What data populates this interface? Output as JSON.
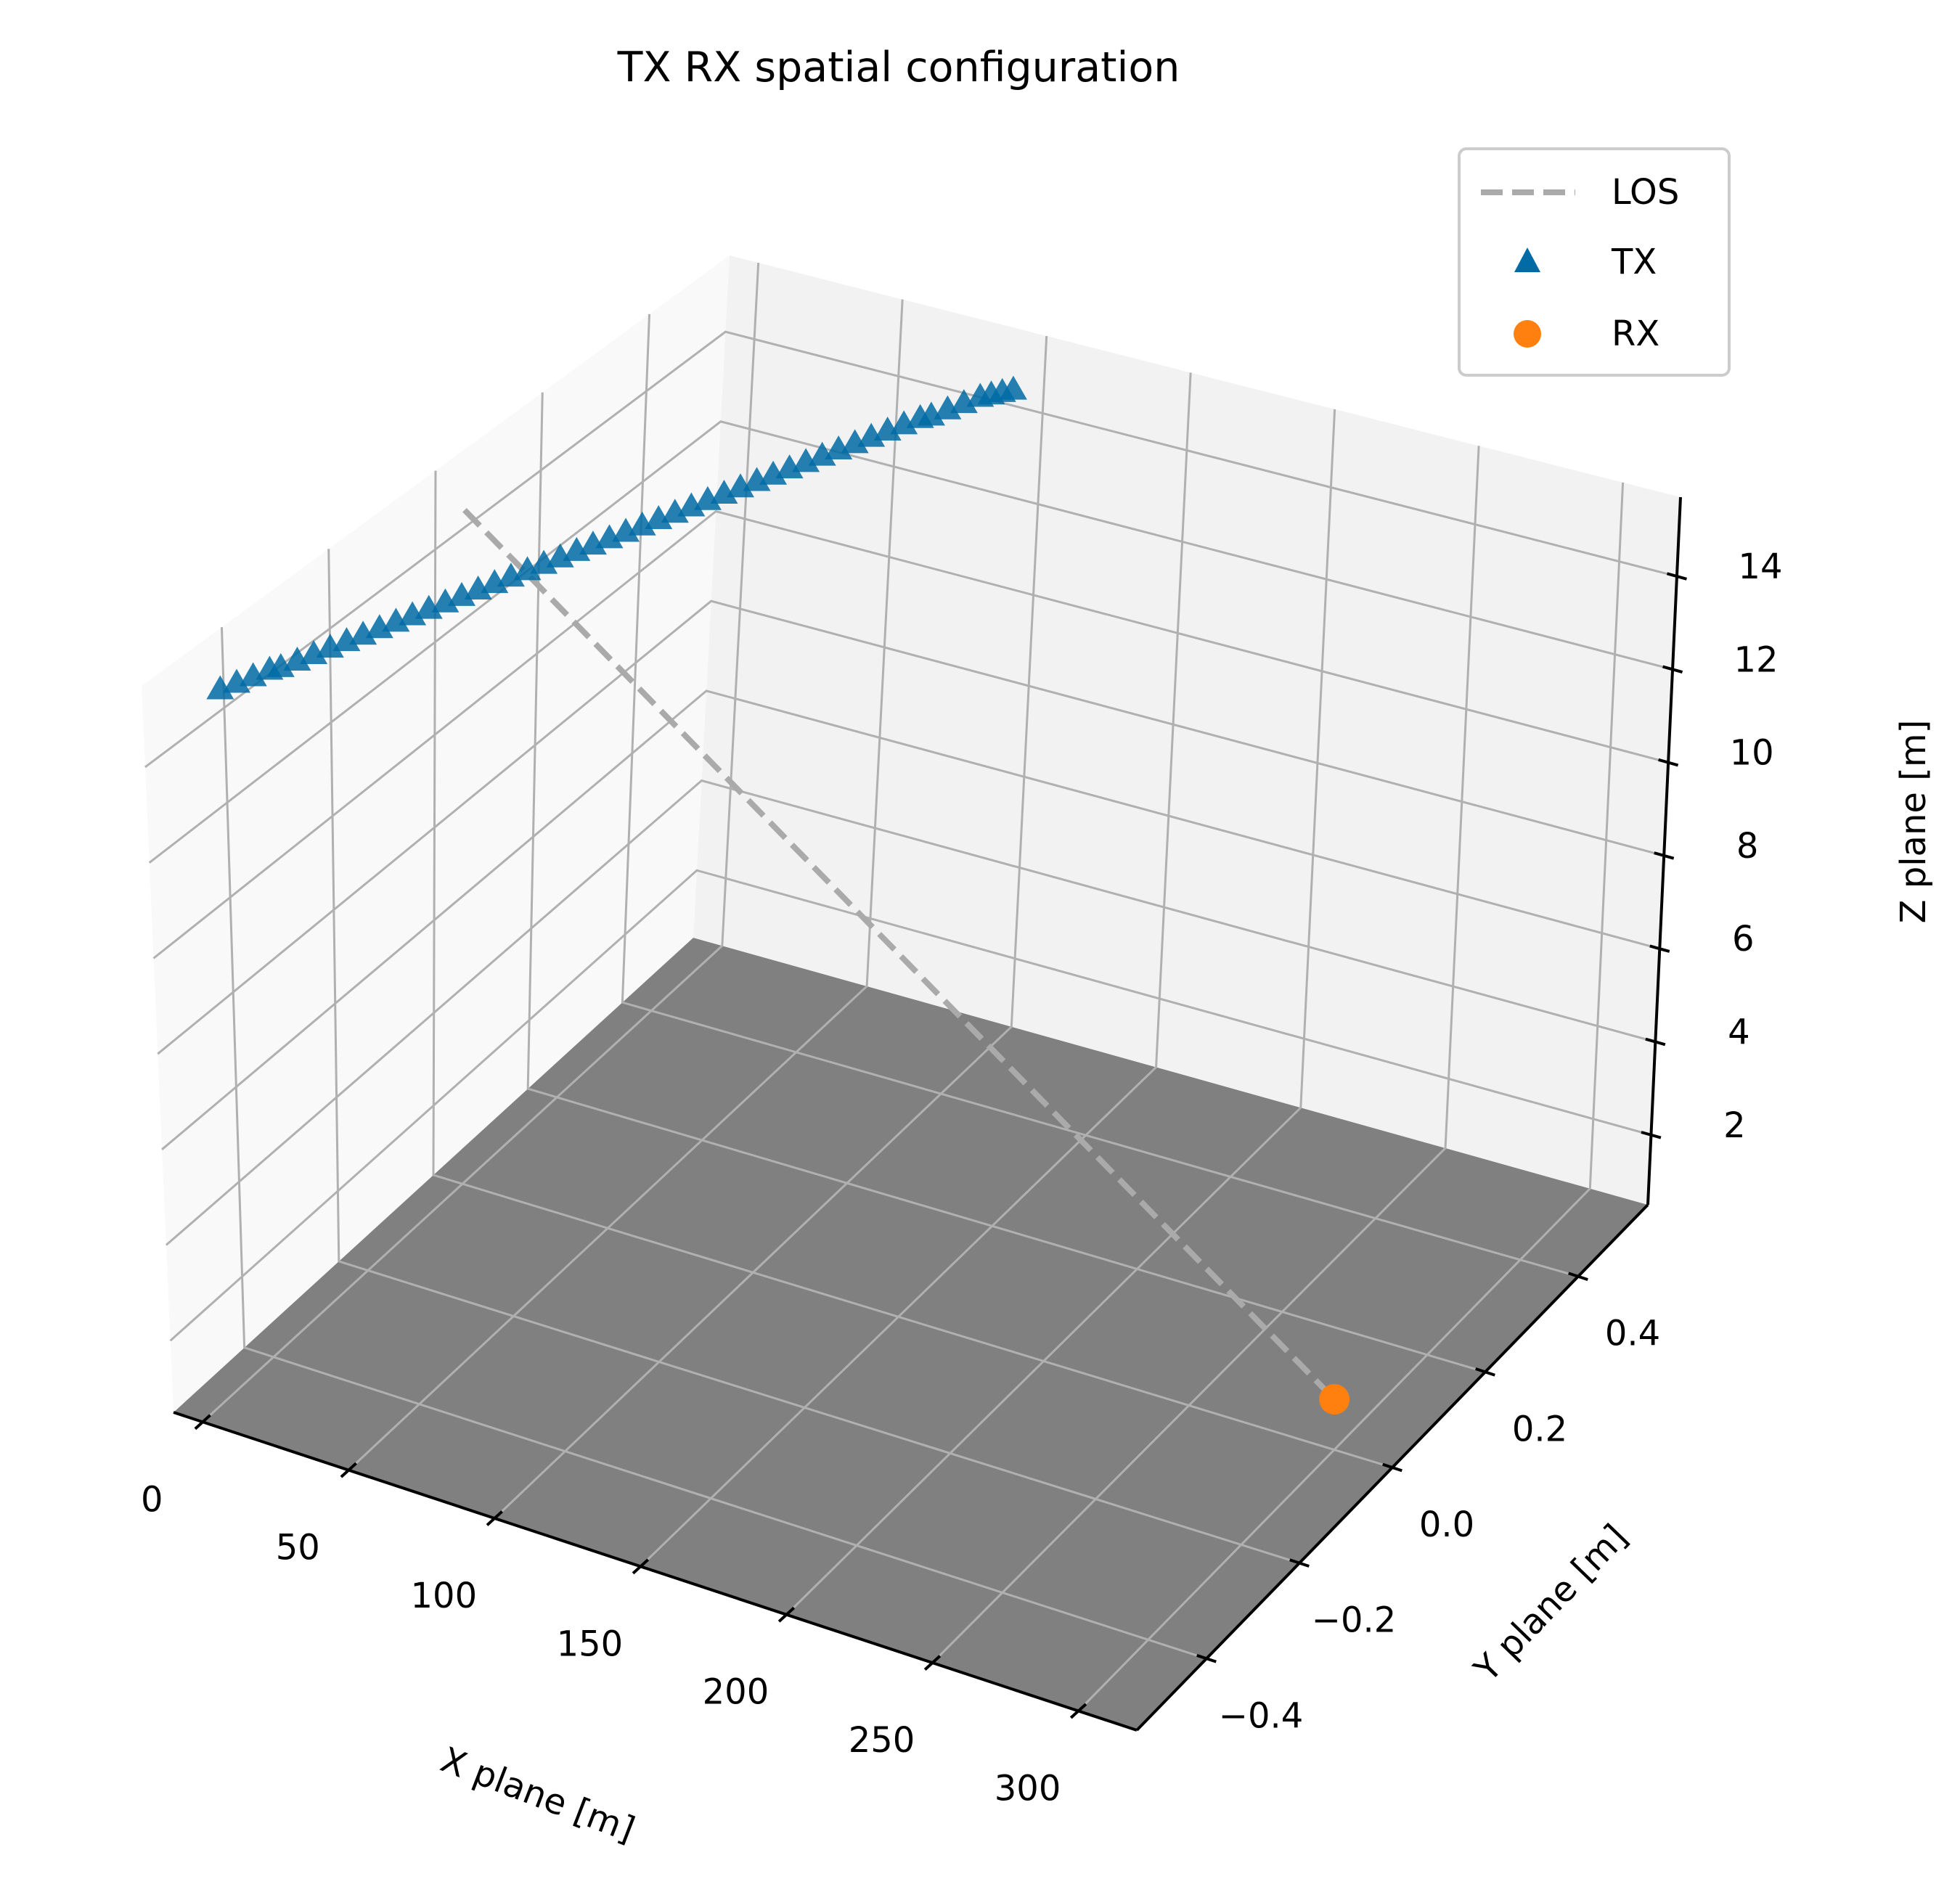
{
  "chart_data": {
    "type": "scatter",
    "title": "TX RX spatial configuration",
    "xlabel": "X plane [m]",
    "ylabel": "Y plane [m]",
    "zlabel": "Z plane [m]",
    "xlim": [
      -10,
      320
    ],
    "ylim": [
      -0.55,
      0.55
    ],
    "zlim": [
      0.5,
      15.7
    ],
    "x_ticks": [
      0,
      50,
      100,
      150,
      200,
      250,
      300
    ],
    "x_tick_labels": [
      "0",
      "50",
      "100",
      "150",
      "200",
      "250",
      "300"
    ],
    "y_ticks": [
      -0.4,
      -0.2,
      0.0,
      0.2,
      0.4
    ],
    "y_tick_labels": [
      "−0.4",
      "−0.2",
      "0.0",
      "0.2",
      "0.4"
    ],
    "z_ticks": [
      2,
      4,
      6,
      8,
      10,
      12,
      14
    ],
    "z_tick_labels": [
      "2",
      "4",
      "6",
      "8",
      "10",
      "12",
      "14"
    ],
    "grid": true,
    "floor_color": "#808080",
    "legend_position": "top-right",
    "series": [
      {
        "name": "LOS",
        "kind": "line",
        "style": "dashed",
        "color": "#aaaaaa",
        "x": [
          0,
          300
        ],
        "y": [
          0,
          0
        ],
        "z": [
          15,
          1.5
        ]
      },
      {
        "name": "TX",
        "kind": "scatter",
        "marker": "triangle",
        "color": "#006ba4",
        "x": [
          0,
          2,
          4,
          6,
          8,
          10,
          12,
          14,
          16,
          18,
          20,
          22,
          24,
          26,
          28,
          30,
          32,
          34,
          36,
          38,
          40,
          42,
          44,
          46,
          48,
          50,
          52,
          54,
          56,
          58,
          60,
          62,
          64,
          66,
          68,
          70,
          72,
          74,
          76,
          78,
          80,
          82,
          84,
          86,
          88,
          90,
          92,
          94,
          96,
          98,
          100
        ],
        "y": [
          -0.46,
          -0.44,
          -0.42,
          -0.4,
          -0.39,
          -0.37,
          -0.35,
          -0.33,
          -0.31,
          -0.29,
          -0.27,
          -0.25,
          -0.23,
          -0.21,
          -0.19,
          -0.17,
          -0.15,
          -0.13,
          -0.11,
          -0.09,
          -0.07,
          -0.05,
          -0.03,
          -0.01,
          0.01,
          0.03,
          0.05,
          0.07,
          0.09,
          0.11,
          0.13,
          0.15,
          0.17,
          0.19,
          0.21,
          0.23,
          0.25,
          0.27,
          0.29,
          0.31,
          0.33,
          0.35,
          0.37,
          0.39,
          0.4,
          0.42,
          0.44,
          0.46,
          0.47,
          0.48,
          0.49
        ],
        "z": [
          15,
          15,
          15,
          15,
          15,
          15,
          15,
          15,
          15,
          15,
          15,
          15,
          15,
          15,
          15,
          15,
          15,
          15,
          15,
          15,
          15,
          15,
          15,
          15,
          15,
          15,
          15,
          15,
          15,
          15,
          15,
          15,
          15,
          15,
          15,
          15,
          15,
          15,
          15,
          15,
          15,
          15,
          15,
          15,
          15,
          15,
          15,
          15,
          15,
          15,
          15
        ]
      },
      {
        "name": "RX",
        "kind": "scatter",
        "marker": "circle",
        "color": "#ff800e",
        "x": [
          300
        ],
        "y": [
          0
        ],
        "z": [
          1.5
        ]
      }
    ]
  }
}
